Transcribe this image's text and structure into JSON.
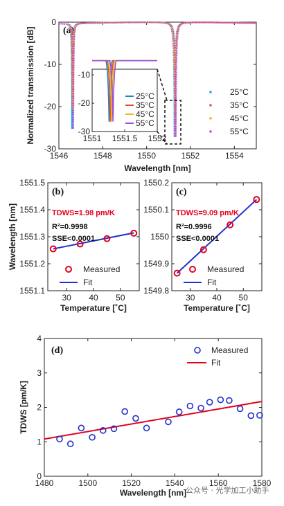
{
  "watermark": "公众号 · 光学加工小助手",
  "chart_data": [
    {
      "panel": "(a)",
      "type": "line",
      "xlabel": "Wavelength [nm]",
      "ylabel": "Normalized transmission [dB]",
      "xlim": [
        1546,
        1555
      ],
      "ylim": [
        -30,
        0
      ],
      "xticks": [
        "1546",
        "1548",
        "1550",
        "1552",
        "1554"
      ],
      "yticks": [
        "0",
        "-10",
        "-20",
        "-30"
      ],
      "legend": [
        "25°C",
        "35°C",
        "45°C",
        "55°C"
      ],
      "colors": [
        "#1aa7e6",
        "#e8514a",
        "#f2b21a",
        "#b94fd6"
      ],
      "resonances": [
        {
          "center": 1546.6,
          "depth": -25.0
        },
        {
          "center": 1551.27,
          "depth": -28.5
        }
      ],
      "peaks": [
        {
          "x": 1549.0,
          "y": -0.8
        },
        {
          "x": 1553.6,
          "y": 0.3
        }
      ],
      "series_offsets_nm": [
        0.0,
        0.02,
        0.04,
        0.06
      ],
      "inset": {
        "xlim": [
          1551,
          1552
        ],
        "ylim": [
          -30,
          -8
        ],
        "xticks": [
          "1551",
          "1551.5",
          "1552"
        ],
        "yticks": [
          "-10",
          "-20",
          "-30"
        ],
        "legend": [
          "25°C",
          "35°C",
          "45°C",
          "55°C"
        ],
        "colors": [
          "#2a7fc1",
          "#e0542a",
          "#e8b91a",
          "#a24fd0"
        ],
        "center": 1551.26,
        "depth": -26.5,
        "series_offsets_nm": [
          0.0,
          0.02,
          0.04,
          0.06
        ]
      }
    },
    {
      "panel": "(b)",
      "type": "scatter",
      "xlabel": "Temperature [˚C]",
      "ylabel": "Wavelength [nm]",
      "xlim": [
        23,
        57
      ],
      "ylim": [
        1551.1,
        1551.5
      ],
      "xticks": [
        "30",
        "40",
        "50"
      ],
      "yticks": [
        "1551.1",
        "1551.2",
        "1551.3",
        "1551.4",
        "1551.5"
      ],
      "x": [
        25,
        35,
        45,
        55
      ],
      "y": [
        1551.255,
        1551.273,
        1551.293,
        1551.313
      ],
      "fit": {
        "slope": 0.00198,
        "x0": 25,
        "y0": 1551.255
      },
      "annotations": [
        "TDWS=1.98 pm/K",
        "R²=0.9998",
        "SSE<0.0001"
      ],
      "legend": [
        "Measured",
        "Fit"
      ]
    },
    {
      "panel": "(c)",
      "type": "scatter",
      "xlabel": "Temperature [˚C]",
      "ylabel": "",
      "xlim": [
        23,
        57
      ],
      "ylim": [
        1549.8,
        1550.2
      ],
      "xticks": [
        "30",
        "40",
        "50"
      ],
      "yticks": [
        "1549.8",
        "1549.9",
        "1550",
        "1550.1",
        "1550.2"
      ],
      "x": [
        25,
        35,
        45,
        55
      ],
      "y": [
        1549.865,
        1549.952,
        1550.044,
        1550.138
      ],
      "fit": {
        "slope": 0.00909,
        "x0": 25,
        "y0": 1549.865
      },
      "annotations": [
        "TDWS=9.09 pm/K",
        "R²=0.9996",
        "SSE<0.0001"
      ],
      "legend": [
        "Measured",
        "Fit"
      ]
    },
    {
      "panel": "(d)",
      "type": "scatter",
      "xlabel": "Wavelength [nm]",
      "ylabel": "TDWS [pm/K]",
      "xlim": [
        1480,
        1580
      ],
      "ylim": [
        0,
        4
      ],
      "xticks": [
        "1480",
        "1500",
        "1520",
        "1540",
        "1560",
        "1580"
      ],
      "yticks": [
        "0",
        "1",
        "2",
        "3",
        "4"
      ],
      "x": [
        1487,
        1492,
        1497,
        1502,
        1507,
        1512,
        1517,
        1522,
        1527,
        1537,
        1542,
        1547,
        1552,
        1556,
        1561,
        1565,
        1570,
        1575,
        1579
      ],
      "y": [
        1.08,
        0.94,
        1.4,
        1.13,
        1.33,
        1.38,
        1.88,
        1.68,
        1.4,
        1.58,
        1.87,
        2.04,
        1.98,
        2.15,
        2.22,
        2.2,
        1.96,
        1.76,
        1.77
      ],
      "fit": {
        "x": [
          1480,
          1580
        ],
        "y": [
          1.08,
          2.17
        ]
      },
      "legend": [
        "Measured",
        "Fit"
      ]
    }
  ]
}
